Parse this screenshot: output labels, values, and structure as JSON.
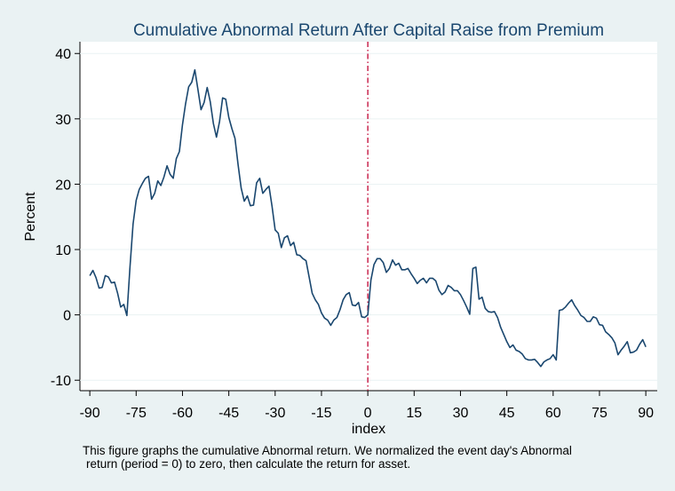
{
  "chart_data": {
    "type": "line",
    "title": "Cumulative Abnormal Return After Capital Raise from Premium",
    "x_label": "index",
    "y_label": "Percent",
    "note": [
      "This figure graphs the cumulative Abnormal return. We normalized the event day's Abnormal",
      "return (period = 0) to zero, then calculate the return for asset."
    ],
    "x": [
      -90,
      -89,
      -88,
      -87,
      -86,
      -85,
      -84,
      -83,
      -82,
      -81,
      -80,
      -79,
      -78,
      -77,
      -76,
      -75,
      -74,
      -73,
      -72,
      -71,
      -70,
      -69,
      -68,
      -67,
      -66,
      -65,
      -64,
      -63,
      -62,
      -61,
      -60,
      -59,
      -58,
      -57,
      -56,
      -55,
      -54,
      -53,
      -52,
      -51,
      -50,
      -49,
      -48,
      -47,
      -46,
      -45,
      -44,
      -43,
      -42,
      -41,
      -40,
      -39,
      -38,
      -37,
      -36,
      -35,
      -34,
      -33,
      -32,
      -31,
      -30,
      -29,
      -28,
      -27,
      -26,
      -25,
      -24,
      -23,
      -22,
      -21,
      -20,
      -19,
      -18,
      -17,
      -16,
      -15,
      -14,
      -13,
      -12,
      -11,
      -10,
      -9,
      -8,
      -7,
      -6,
      -5,
      -4,
      -3,
      -2,
      -1,
      0,
      1,
      2,
      3,
      4,
      5,
      6,
      7,
      8,
      9,
      10,
      11,
      12,
      13,
      14,
      15,
      16,
      17,
      18,
      19,
      20,
      21,
      22,
      23,
      24,
      25,
      26,
      27,
      28,
      29,
      30,
      31,
      32,
      33,
      34,
      35,
      36,
      37,
      38,
      39,
      40,
      41,
      42,
      43,
      44,
      45,
      46,
      47,
      48,
      49,
      50,
      51,
      52,
      53,
      54,
      55,
      56,
      57,
      58,
      59,
      60,
      61,
      62,
      63,
      64,
      65,
      66,
      67,
      68,
      69,
      70,
      71,
      72,
      73,
      74,
      75,
      76,
      77,
      78,
      79,
      80,
      81,
      82,
      83,
      84,
      85,
      86,
      87,
      88,
      89,
      90
    ],
    "series": [
      {
        "color": "#1a476f",
        "values": [
          6.0,
          6.8,
          5.7,
          4.1,
          4.2,
          6.0,
          5.8,
          4.9,
          5.0,
          3.3,
          1.2,
          1.6,
          -0.1,
          7.3,
          13.9,
          17.5,
          19.2,
          20.1,
          20.9,
          21.2,
          17.7,
          18.6,
          20.5,
          19.8,
          21.1,
          22.8,
          21.5,
          20.9,
          23.9,
          25.0,
          29.1,
          32.3,
          34.9,
          35.6,
          37.5,
          34.5,
          31.4,
          32.5,
          34.8,
          32.6,
          29.3,
          27.2,
          29.6,
          33.2,
          33.0,
          30.2,
          28.5,
          27.0,
          23.0,
          19.4,
          17.4,
          18.2,
          16.7,
          16.8,
          20.2,
          20.9,
          18.6,
          19.2,
          19.7,
          16.6,
          13.0,
          12.5,
          10.3,
          11.8,
          12.1,
          10.6,
          11.1,
          9.2,
          9.1,
          8.6,
          8.3,
          5.8,
          3.3,
          2.3,
          1.6,
          0.3,
          -0.5,
          -0.8,
          -1.6,
          -0.8,
          -0.4,
          0.8,
          2.3,
          3.1,
          3.4,
          1.5,
          1.4,
          1.9,
          -0.3,
          -0.4,
          0.0,
          5.3,
          7.7,
          8.6,
          8.6,
          8.0,
          6.5,
          7.1,
          8.4,
          7.6,
          7.9,
          6.9,
          6.9,
          7.1,
          6.3,
          5.6,
          4.8,
          5.3,
          5.6,
          4.9,
          5.6,
          5.6,
          5.2,
          3.8,
          3.1,
          3.5,
          4.5,
          4.2,
          3.7,
          3.7,
          3.1,
          2.2,
          1.2,
          0.1,
          7.1,
          7.3,
          2.4,
          2.7,
          1.0,
          0.5,
          0.4,
          0.5,
          -0.4,
          -1.9,
          -3.0,
          -4.1,
          -5.0,
          -4.6,
          -5.4,
          -5.6,
          -6.0,
          -6.7,
          -6.9,
          -6.9,
          -6.8,
          -7.3,
          -7.9,
          -7.2,
          -6.9,
          -6.7,
          -6.1,
          -6.9,
          0.7,
          0.8,
          1.2,
          1.8,
          2.3,
          1.4,
          0.7,
          -0.1,
          -0.4,
          -1.0,
          -1.0,
          -0.3,
          -0.5,
          -1.5,
          -1.6,
          -2.6,
          -3.0,
          -3.5,
          -4.3,
          -6.1,
          -5.4,
          -4.8,
          -4.1,
          -5.8,
          -5.7,
          -5.4,
          -4.5,
          -3.8,
          -4.9
        ]
      }
    ],
    "vline": {
      "x": 0,
      "color": "#c10534"
    },
    "xlim": [
      -93.2,
      93.7
    ],
    "ylim": [
      -11.6,
      41.8
    ],
    "xticks": [
      -90,
      -75,
      -60,
      -45,
      -30,
      -15,
      0,
      15,
      30,
      45,
      60,
      75,
      90
    ],
    "yticks": [
      -10,
      0,
      10,
      20,
      30,
      40
    ],
    "grid": true
  }
}
